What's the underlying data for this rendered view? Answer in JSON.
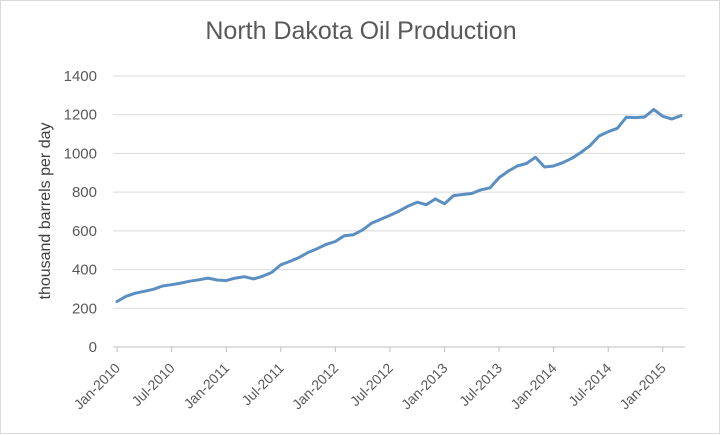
{
  "chart_data": {
    "type": "line",
    "title": "North Dakota Oil Production",
    "xlabel": "",
    "ylabel": "thousand barrels per day",
    "ylim": [
      0,
      1400
    ],
    "yticks": [
      "0",
      "200",
      "400",
      "600",
      "800",
      "1000",
      "1200",
      "1400"
    ],
    "grid": true,
    "legend": "none",
    "line_color": "#5b8fc1",
    "x_tick_labels": [
      {
        "index": 0,
        "label": "Jan-2010"
      },
      {
        "index": 6,
        "label": "Jul-2010"
      },
      {
        "index": 12,
        "label": "Jan-2011"
      },
      {
        "index": 18,
        "label": "Jul-2011"
      },
      {
        "index": 24,
        "label": "Jan-2012"
      },
      {
        "index": 30,
        "label": "Jul-2012"
      },
      {
        "index": 36,
        "label": "Jan-2013"
      },
      {
        "index": 42,
        "label": "Jul-2013"
      },
      {
        "index": 48,
        "label": "Jan-2014"
      },
      {
        "index": 54,
        "label": "Jul-2014"
      },
      {
        "index": 60,
        "label": "Jan-2015"
      }
    ],
    "x": [
      "2010-01",
      "2010-02",
      "2010-03",
      "2010-04",
      "2010-05",
      "2010-06",
      "2010-07",
      "2010-08",
      "2010-09",
      "2010-10",
      "2010-11",
      "2010-12",
      "2011-01",
      "2011-02",
      "2011-03",
      "2011-04",
      "2011-05",
      "2011-06",
      "2011-07",
      "2011-08",
      "2011-09",
      "2011-10",
      "2011-11",
      "2011-12",
      "2012-01",
      "2012-02",
      "2012-03",
      "2012-04",
      "2012-05",
      "2012-06",
      "2012-07",
      "2012-08",
      "2012-09",
      "2012-10",
      "2012-11",
      "2012-12",
      "2013-01",
      "2013-02",
      "2013-03",
      "2013-04",
      "2013-05",
      "2013-06",
      "2013-07",
      "2013-08",
      "2013-09",
      "2013-10",
      "2013-11",
      "2013-12",
      "2014-01",
      "2014-02",
      "2014-03",
      "2014-04",
      "2014-05",
      "2014-06",
      "2014-07",
      "2014-08",
      "2014-09",
      "2014-10",
      "2014-11",
      "2014-12",
      "2015-01",
      "2015-02",
      "2015-03"
    ],
    "values": [
      235,
      262,
      278,
      288,
      298,
      315,
      322,
      330,
      340,
      347,
      356,
      346,
      343,
      356,
      363,
      352,
      365,
      385,
      424,
      442,
      462,
      488,
      508,
      530,
      545,
      575,
      580,
      605,
      640,
      660,
      680,
      702,
      728,
      748,
      735,
      765,
      740,
      782,
      788,
      793,
      812,
      822,
      875,
      908,
      935,
      948,
      980,
      930,
      935,
      952,
      975,
      1005,
      1040,
      1090,
      1112,
      1130,
      1187,
      1185,
      1188,
      1227,
      1192,
      1178,
      1195
    ]
  }
}
